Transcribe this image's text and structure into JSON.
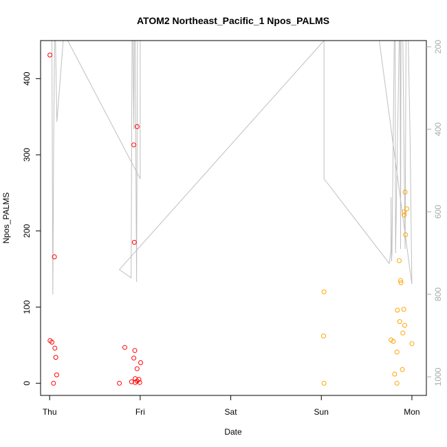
{
  "chart_data": {
    "type": "scatter",
    "title": "ATOM2 Northeast_Pacific_1 Npos_PALMS",
    "xlabel": "Date",
    "ylabel": "Npos_PALMS",
    "x_ticks": [
      {
        "label": "Thu",
        "value": 0
      },
      {
        "label": "Fri",
        "value": 1
      },
      {
        "label": "Sat",
        "value": 2
      },
      {
        "label": "Sun",
        "value": 3
      },
      {
        "label": "Mon",
        "value": 4
      }
    ],
    "xlim": [
      -0.1,
      4.16
    ],
    "ylim": [
      -16,
      450
    ],
    "y_ticks": [
      0,
      100,
      200,
      300,
      400
    ],
    "y2lim": [
      1045,
      185
    ],
    "y2_ticks": [
      200,
      400,
      600,
      800,
      1000
    ],
    "grid": false,
    "colors": {
      "red_points": "#ff0000",
      "orange_points": "#ffa500",
      "altitude_line": "#bfbfbf",
      "right_axis": "#aaaaaa"
    },
    "series": [
      {
        "color": "red",
        "points": [
          {
            "x": 0.003,
            "y": 431
          },
          {
            "x": 0.053,
            "y": 166
          },
          {
            "x": 0.005,
            "y": 56
          },
          {
            "x": 0.025,
            "y": 54
          },
          {
            "x": 0.058,
            "y": 46
          },
          {
            "x": 0.068,
            "y": 34
          },
          {
            "x": 0.078,
            "y": 11
          },
          {
            "x": 0.043,
            "y": 0
          },
          {
            "x": 0.93,
            "y": 313
          },
          {
            "x": 0.965,
            "y": 337
          },
          {
            "x": 0.935,
            "y": 185
          },
          {
            "x": 0.83,
            "y": 47
          },
          {
            "x": 0.94,
            "y": 43
          },
          {
            "x": 0.93,
            "y": 33
          },
          {
            "x": 1.005,
            "y": 27
          },
          {
            "x": 0.965,
            "y": 19
          },
          {
            "x": 0.945,
            "y": 6
          },
          {
            "x": 0.985,
            "y": 5
          },
          {
            "x": 0.965,
            "y": 3
          },
          {
            "x": 0.905,
            "y": 2
          },
          {
            "x": 0.945,
            "y": 1
          },
          {
            "x": 0.995,
            "y": 1
          },
          {
            "x": 0.77,
            "y": 0
          }
        ]
      },
      {
        "color": "orange",
        "points": [
          {
            "x": 3.03,
            "y": 120
          },
          {
            "x": 3.025,
            "y": 62
          },
          {
            "x": 3.03,
            "y": 0
          },
          {
            "x": 3.77,
            "y": 57
          },
          {
            "x": 3.795,
            "y": 55
          },
          {
            "x": 3.81,
            "y": 12
          },
          {
            "x": 3.835,
            "y": 41
          },
          {
            "x": 3.84,
            "y": 96
          },
          {
            "x": 3.835,
            "y": 0
          },
          {
            "x": 3.86,
            "y": 161
          },
          {
            "x": 3.875,
            "y": 135
          },
          {
            "x": 3.88,
            "y": 132
          },
          {
            "x": 3.865,
            "y": 81
          },
          {
            "x": 3.9,
            "y": 66
          },
          {
            "x": 3.895,
            "y": 18
          },
          {
            "x": 3.91,
            "y": 97
          },
          {
            "x": 3.92,
            "y": 76
          },
          {
            "x": 3.915,
            "y": 225
          },
          {
            "x": 3.915,
            "y": 221
          },
          {
            "x": 3.925,
            "y": 251
          },
          {
            "x": 3.93,
            "y": 195
          },
          {
            "x": 3.945,
            "y": 229
          },
          {
            "x": 4.0,
            "y": 52
          }
        ]
      }
    ],
    "altitude_line": [
      [
        0.0,
        185
      ],
      [
        0.025,
        185
      ],
      [
        0.035,
        800
      ],
      [
        0.045,
        420
      ],
      [
        0.055,
        185
      ],
      [
        0.065,
        185
      ],
      [
        0.08,
        382
      ],
      [
        0.15,
        185
      ],
      [
        0.2,
        185
      ],
      [
        1.0,
        520
      ],
      [
        1.0,
        185
      ],
      [
        0.97,
        185
      ],
      [
        0.96,
        770
      ],
      [
        0.945,
        185
      ],
      [
        0.92,
        185
      ],
      [
        0.93,
        400
      ],
      [
        0.935,
        185
      ],
      [
        0.91,
        185
      ],
      [
        0.9,
        760
      ],
      [
        0.77,
        740
      ],
      [
        3.03,
        185
      ],
      [
        3.03,
        520
      ],
      [
        3.75,
        725
      ],
      [
        3.77,
        690
      ],
      [
        3.77,
        565
      ],
      [
        3.775,
        720
      ],
      [
        3.78,
        700
      ],
      [
        3.805,
        185
      ],
      [
        3.815,
        185
      ],
      [
        3.82,
        700
      ],
      [
        3.86,
        185
      ],
      [
        3.87,
        185
      ],
      [
        3.875,
        690
      ],
      [
        3.88,
        185
      ],
      [
        3.9,
        185
      ],
      [
        3.925,
        690
      ],
      [
        3.935,
        185
      ],
      [
        3.96,
        185
      ],
      [
        3.98,
        420
      ],
      [
        4.0,
        775
      ],
      [
        3.64,
        185
      ],
      [
        3.03,
        185
      ]
    ]
  }
}
